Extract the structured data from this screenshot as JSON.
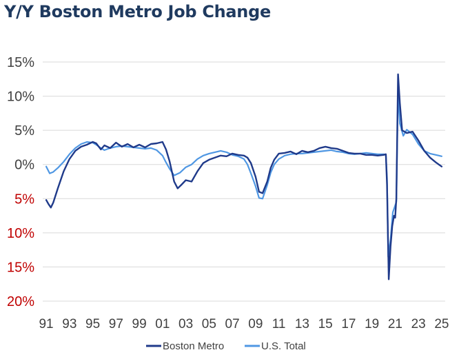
{
  "title": "Y/Y Boston Metro Job Change",
  "chart_data": {
    "type": "line",
    "title": "Y/Y Boston Metro Job Change",
    "ylim": [
      -20,
      15
    ],
    "y_ticks": [
      {
        "value": 15,
        "label": "15%"
      },
      {
        "value": 10,
        "label": "10%"
      },
      {
        "value": 5,
        "label": "5%"
      },
      {
        "value": 0,
        "label": "0%"
      },
      {
        "value": -5,
        "label": "5%"
      },
      {
        "value": -10,
        "label": "10%"
      },
      {
        "value": -15,
        "label": "15%"
      },
      {
        "value": -20,
        "label": "20%"
      }
    ],
    "xlim": [
      1990.7,
      2025.3
    ],
    "x_ticks": [
      {
        "value": 1991,
        "label": "91"
      },
      {
        "value": 1993,
        "label": "93"
      },
      {
        "value": 1995,
        "label": "95"
      },
      {
        "value": 1997,
        "label": "97"
      },
      {
        "value": 1999,
        "label": "99"
      },
      {
        "value": 2001,
        "label": "01"
      },
      {
        "value": 2003,
        "label": "03"
      },
      {
        "value": 2005,
        "label": "05"
      },
      {
        "value": 2007,
        "label": "07"
      },
      {
        "value": 2009,
        "label": "09"
      },
      {
        "value": 2011,
        "label": "11"
      },
      {
        "value": 2013,
        "label": "13"
      },
      {
        "value": 2015,
        "label": "15"
      },
      {
        "value": 2017,
        "label": "17"
      },
      {
        "value": 2019,
        "label": "19"
      },
      {
        "value": 2021,
        "label": "21"
      },
      {
        "value": 2023,
        "label": "23"
      },
      {
        "value": 2025,
        "label": "25"
      }
    ],
    "grid": true,
    "legend_position": "bottom",
    "positive_label_color": "#404040",
    "negative_label_color": "#c00000",
    "series": [
      {
        "name": "Boston Metro",
        "color": "#1f3a8a",
        "x": [
          1991.0,
          1991.2,
          1991.4,
          1991.6,
          1992.0,
          1992.5,
          1993.0,
          1993.5,
          1994.0,
          1994.5,
          1995.0,
          1995.3,
          1995.7,
          1996.0,
          1996.5,
          1997.0,
          1997.5,
          1998.0,
          1998.5,
          1999.0,
          1999.5,
          2000.0,
          2000.5,
          2001.0,
          2001.3,
          2001.6,
          2002.0,
          2002.3,
          2002.6,
          2003.0,
          2003.5,
          2004.0,
          2004.5,
          2005.0,
          2005.5,
          2006.0,
          2006.5,
          2007.0,
          2007.5,
          2008.0,
          2008.3,
          2008.6,
          2009.0,
          2009.3,
          2009.6,
          2010.0,
          2010.3,
          2010.6,
          2011.0,
          2011.5,
          2012.0,
          2012.5,
          2013.0,
          2013.5,
          2014.0,
          2014.5,
          2015.0,
          2015.5,
          2016.0,
          2016.5,
          2017.0,
          2017.5,
          2018.0,
          2018.5,
          2019.0,
          2019.5,
          2020.0,
          2020.2,
          2020.3,
          2020.45,
          2020.6,
          2020.75,
          2020.9,
          2021.0,
          2021.1,
          2021.25,
          2021.4,
          2021.6,
          2022.0,
          2022.5,
          2023.0,
          2023.5,
          2024.0,
          2024.5,
          2025.0
        ],
        "y": [
          -5.2,
          -5.8,
          -6.3,
          -5.6,
          -3.5,
          -1.0,
          0.8,
          2.0,
          2.6,
          2.9,
          3.3,
          3.1,
          2.2,
          2.8,
          2.4,
          3.2,
          2.6,
          3.0,
          2.5,
          2.9,
          2.5,
          3.0,
          3.1,
          3.3,
          2.2,
          0.5,
          -2.5,
          -3.5,
          -3.0,
          -2.3,
          -2.5,
          -1.0,
          0.2,
          0.7,
          1.0,
          1.3,
          1.2,
          1.6,
          1.4,
          1.3,
          1.0,
          0.2,
          -1.8,
          -4.0,
          -4.2,
          -2.5,
          -0.5,
          0.7,
          1.6,
          1.7,
          1.9,
          1.5,
          2.0,
          1.8,
          2.0,
          2.4,
          2.6,
          2.4,
          2.3,
          2.0,
          1.7,
          1.6,
          1.6,
          1.4,
          1.4,
          1.3,
          1.4,
          1.5,
          -3.0,
          -16.8,
          -12.0,
          -9.0,
          -7.5,
          -7.8,
          -5.0,
          13.2,
          9.0,
          5.0,
          4.6,
          4.8,
          3.5,
          2.0,
          1.0,
          0.3,
          -0.3
        ]
      },
      {
        "name": "U.S. Total",
        "color": "#4f97e3",
        "x": [
          1991.0,
          1991.3,
          1991.6,
          1992.0,
          1992.5,
          1993.0,
          1993.5,
          1994.0,
          1994.5,
          1995.0,
          1995.3,
          1995.7,
          1996.0,
          1996.5,
          1997.0,
          1997.5,
          1998.0,
          1998.5,
          1999.0,
          1999.5,
          2000.0,
          2000.5,
          2001.0,
          2001.3,
          2001.6,
          2002.0,
          2002.5,
          2003.0,
          2003.5,
          2004.0,
          2004.5,
          2005.0,
          2005.5,
          2006.0,
          2006.5,
          2007.0,
          2007.5,
          2008.0,
          2008.3,
          2008.6,
          2009.0,
          2009.3,
          2009.6,
          2010.0,
          2010.3,
          2010.6,
          2011.0,
          2011.5,
          2012.0,
          2012.5,
          2013.0,
          2013.5,
          2014.0,
          2014.5,
          2015.0,
          2015.5,
          2016.0,
          2016.5,
          2017.0,
          2017.5,
          2018.0,
          2018.5,
          2019.0,
          2019.5,
          2020.0,
          2020.2,
          2020.3,
          2020.4,
          2020.6,
          2020.8,
          2021.0,
          2021.1,
          2021.25,
          2021.4,
          2021.7,
          2022.0,
          2022.5,
          2023.0,
          2023.5,
          2024.0,
          2024.5,
          2025.0
        ],
        "y": [
          -0.3,
          -1.3,
          -1.1,
          -0.5,
          0.4,
          1.5,
          2.4,
          3.0,
          3.3,
          3.2,
          2.9,
          2.4,
          2.1,
          2.4,
          2.6,
          2.7,
          2.6,
          2.5,
          2.4,
          2.3,
          2.4,
          2.1,
          1.3,
          0.3,
          -0.6,
          -1.6,
          -1.2,
          -0.4,
          0.0,
          0.8,
          1.3,
          1.6,
          1.8,
          2.0,
          1.8,
          1.4,
          1.2,
          0.8,
          0.0,
          -1.3,
          -3.2,
          -4.9,
          -5.0,
          -3.0,
          -1.2,
          0.0,
          0.8,
          1.3,
          1.5,
          1.6,
          1.6,
          1.7,
          1.8,
          1.9,
          2.0,
          2.1,
          1.9,
          1.8,
          1.6,
          1.5,
          1.6,
          1.7,
          1.6,
          1.5,
          1.5,
          1.4,
          -2.0,
          -13.5,
          -11.0,
          -7.0,
          -6.0,
          -5.5,
          11.0,
          6.0,
          4.2,
          5.1,
          4.4,
          3.0,
          2.0,
          1.6,
          1.4,
          1.2
        ]
      }
    ]
  }
}
